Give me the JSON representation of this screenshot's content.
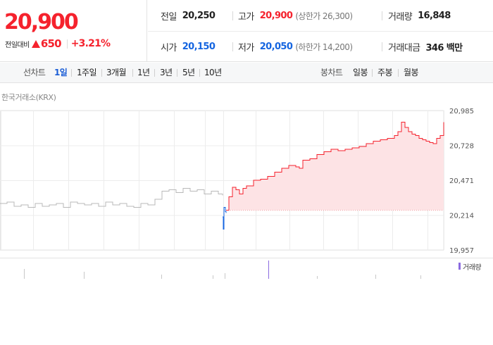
{
  "summary": {
    "current_price": "20,900",
    "change_label": "전일대비",
    "change_direction": "up",
    "change_value": "650",
    "change_percent": "+3.21%",
    "stats": {
      "prev_close": {
        "label": "전일",
        "value": "20,250"
      },
      "high": {
        "label": "고가",
        "value": "20,900",
        "sub": "(상한가 26,300)"
      },
      "volume": {
        "label": "거래량",
        "value": "16,848"
      },
      "open": {
        "label": "시가",
        "value": "20,150"
      },
      "low": {
        "label": "저가",
        "value": "20,050",
        "sub": "(하한가 14,200)"
      },
      "trade_value": {
        "label": "거래대금",
        "value": "346 백만"
      }
    }
  },
  "period_bar": {
    "line_label": "선차트",
    "line_periods": [
      "1일",
      "1주일",
      "3개월",
      "1년",
      "3년",
      "5년",
      "10년"
    ],
    "active_period": "1일",
    "candle_label": "봉차트",
    "candle_periods": [
      "일봉",
      "주봉",
      "월봉"
    ]
  },
  "chart": {
    "exchange_label": "한국거래소(KRX)",
    "volume_legend": "거래량",
    "colors": {
      "up": "#f5222d",
      "down": "#1565e0",
      "neutral": "#b8b8b8",
      "fill": "#fde3e5",
      "volume": "#8b6be0"
    }
  },
  "chart_data": {
    "type": "line",
    "y_ticks": [
      "20,985",
      "20,728",
      "20,471",
      "20,214",
      "19,957"
    ],
    "ylim": [
      19957,
      20985
    ],
    "reference_price": 20250,
    "xlim": [
      0,
      630
    ],
    "series": [
      {
        "segment": "pre-market",
        "points": [
          [
            0,
            20300
          ],
          [
            10,
            20310
          ],
          [
            20,
            20280
          ],
          [
            30,
            20290
          ],
          [
            40,
            20270
          ],
          [
            50,
            20300
          ],
          [
            60,
            20280
          ],
          [
            70,
            20290
          ],
          [
            80,
            20300
          ],
          [
            90,
            20270
          ],
          [
            100,
            20310
          ],
          [
            110,
            20300
          ],
          [
            120,
            20290
          ],
          [
            130,
            20300
          ],
          [
            140,
            20280
          ],
          [
            150,
            20310
          ],
          [
            160,
            20290
          ],
          [
            170,
            20300
          ],
          [
            180,
            20280
          ],
          [
            190,
            20270
          ],
          [
            200,
            20300
          ],
          [
            210,
            20290
          ],
          [
            220,
            20330
          ],
          [
            230,
            20390
          ],
          [
            240,
            20400
          ],
          [
            250,
            20380
          ],
          [
            260,
            20410
          ],
          [
            270,
            20390
          ],
          [
            280,
            20400
          ],
          [
            290,
            20370
          ],
          [
            300,
            20390
          ],
          [
            310,
            20370
          ],
          [
            316,
            20360
          ]
        ]
      },
      {
        "segment": "open-dip",
        "points": [
          [
            316,
            20200
          ],
          [
            317,
            20110
          ],
          [
            318,
            20270
          ],
          [
            320,
            20240
          ],
          [
            321,
            20230
          ]
        ]
      },
      {
        "segment": "regular",
        "points": [
          [
            321,
            20250
          ],
          [
            325,
            20350
          ],
          [
            330,
            20420
          ],
          [
            335,
            20400
          ],
          [
            340,
            20370
          ],
          [
            345,
            20410
          ],
          [
            350,
            20430
          ],
          [
            360,
            20470
          ],
          [
            370,
            20480
          ],
          [
            380,
            20500
          ],
          [
            390,
            20530
          ],
          [
            400,
            20560
          ],
          [
            410,
            20580
          ],
          [
            420,
            20570
          ],
          [
            425,
            20560
          ],
          [
            430,
            20620
          ],
          [
            440,
            20630
          ],
          [
            450,
            20660
          ],
          [
            460,
            20680
          ],
          [
            470,
            20700
          ],
          [
            480,
            20690
          ],
          [
            490,
            20700
          ],
          [
            500,
            20710
          ],
          [
            510,
            20720
          ],
          [
            520,
            20740
          ],
          [
            530,
            20760
          ],
          [
            540,
            20770
          ],
          [
            550,
            20780
          ],
          [
            560,
            20800
          ],
          [
            565,
            20830
          ],
          [
            570,
            20900
          ],
          [
            575,
            20860
          ],
          [
            580,
            20830
          ],
          [
            585,
            20810
          ],
          [
            590,
            20800
          ],
          [
            595,
            20780
          ],
          [
            600,
            20770
          ],
          [
            605,
            20760
          ],
          [
            610,
            20750
          ],
          [
            615,
            20740
          ],
          [
            620,
            20780
          ],
          [
            625,
            20800
          ],
          [
            630,
            20900
          ]
        ]
      }
    ]
  }
}
